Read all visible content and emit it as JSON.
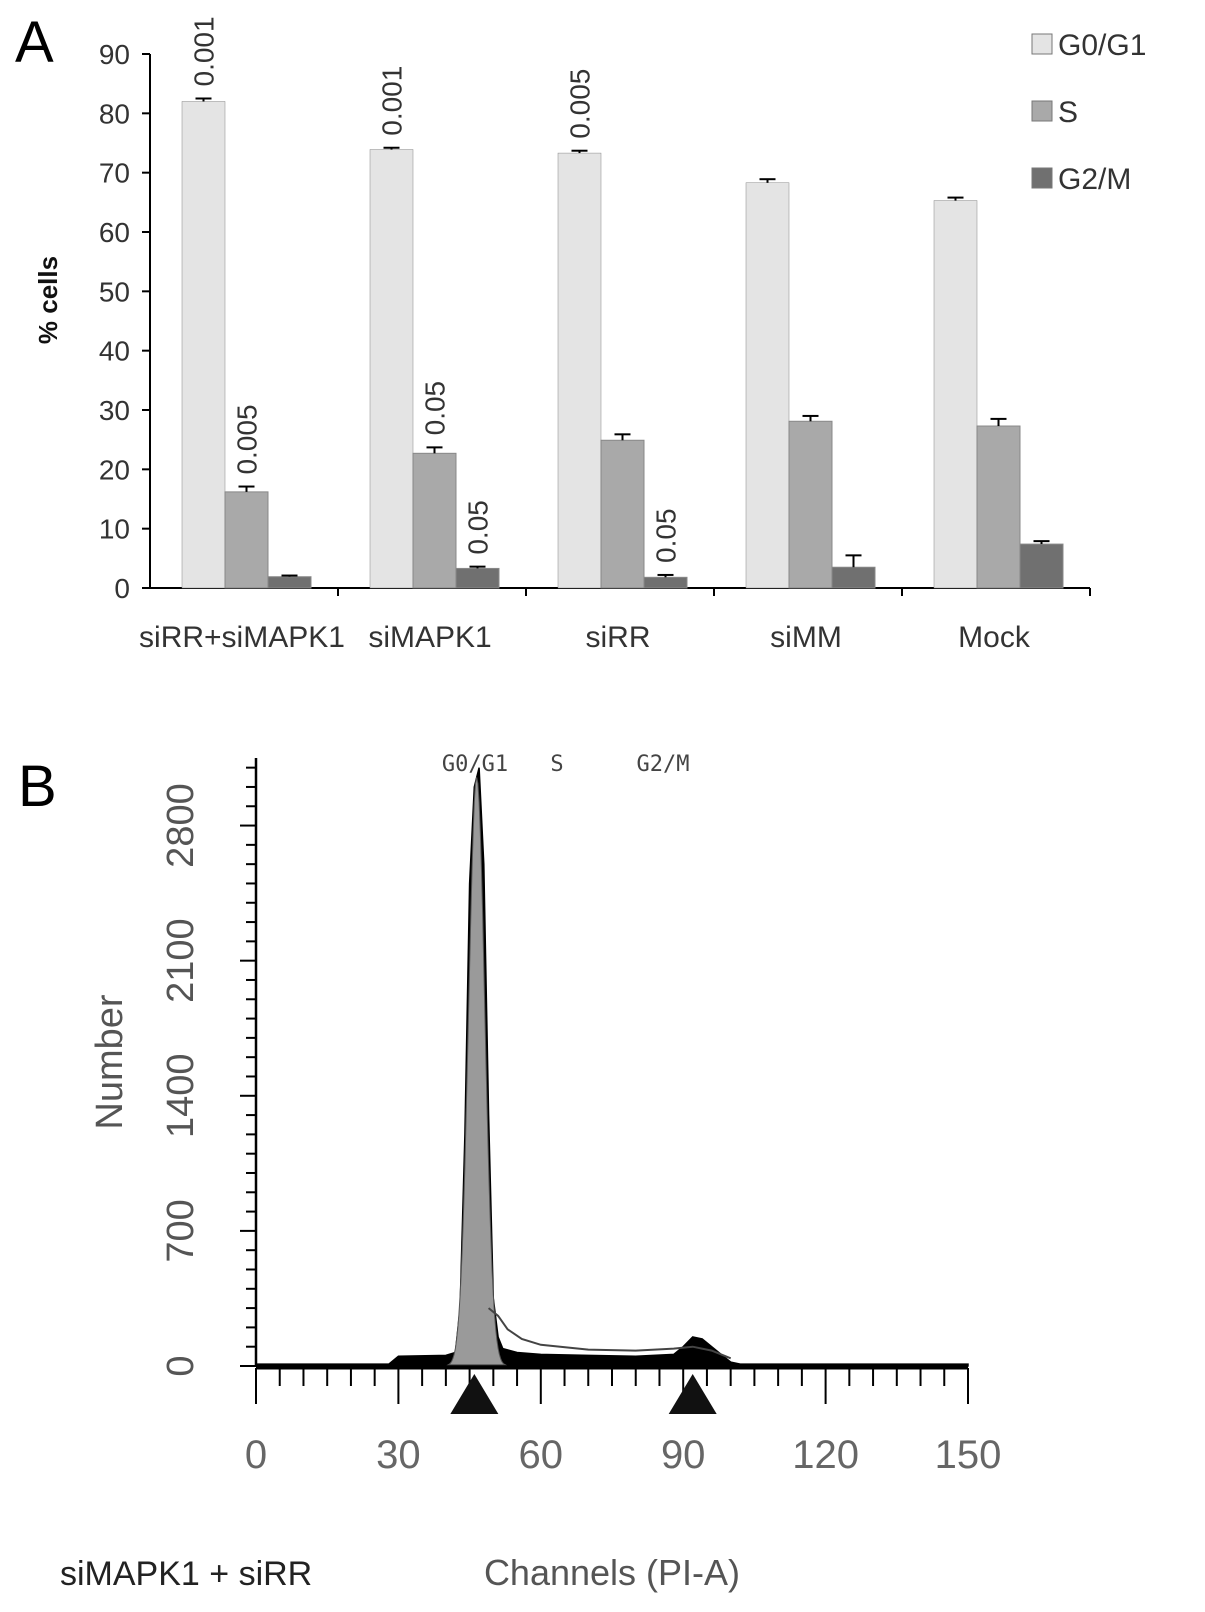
{
  "panel_a": {
    "label": "A",
    "ylabel": "% cells",
    "chart_data": {
      "type": "bar",
      "categories": [
        "siRR+siMAPK1",
        "siMAPK1",
        "siRR",
        "siMM",
        "Mock"
      ],
      "ylim": [
        0,
        90
      ],
      "yticks": [
        0,
        10,
        20,
        30,
        40,
        50,
        60,
        70,
        80,
        90
      ],
      "ylabel": "% cells",
      "xlabel": "",
      "legend_position": "top-right",
      "grid": false,
      "series": [
        {
          "name": "G0/G1",
          "color": "#e4e4e4",
          "values": [
            82.0,
            73.9,
            73.3,
            68.3,
            65.3
          ],
          "errors": [
            0.5,
            0.3,
            0.4,
            0.6,
            0.5
          ],
          "annotations": [
            "0.001",
            "0.001",
            "0.005",
            "",
            ""
          ]
        },
        {
          "name": "S",
          "color": "#a9a9a9",
          "values": [
            16.2,
            22.7,
            24.9,
            28.1,
            27.3
          ],
          "errors": [
            0.9,
            1.0,
            1.0,
            0.9,
            1.2
          ],
          "annotations": [
            "0.005",
            "0.05",
            "",
            "",
            ""
          ]
        },
        {
          "name": "G2/M",
          "color": "#707070",
          "values": [
            1.9,
            3.3,
            1.8,
            3.5,
            7.4
          ],
          "errors": [
            0.2,
            0.3,
            0.4,
            2.0,
            0.5
          ],
          "annotations": [
            "",
            "0.05",
            "0.05",
            "",
            ""
          ]
        }
      ]
    }
  },
  "panel_b": {
    "label": "B",
    "sample_label": "siMAPK1 + siRR",
    "chart_data": {
      "type": "area",
      "xlabel": "Channels (PI-A)",
      "ylabel": "Number",
      "xlim": [
        0,
        150
      ],
      "ylim": [
        0,
        3150
      ],
      "xticks": [
        0,
        30,
        60,
        90,
        120,
        150
      ],
      "yticks": [
        0,
        700,
        1400,
        2100,
        2800
      ],
      "ytick_labels": [
        "0",
        "700",
        "1400",
        "2100",
        "2800"
      ],
      "phase_labels": [
        "G0/G1",
        "S",
        "G2/M"
      ],
      "markers_at": [
        46,
        92
      ],
      "histogram": {
        "x": [
          0,
          28,
          30,
          40,
          42,
          43,
          44,
          45,
          46,
          47,
          48,
          49,
          50,
          51,
          52,
          55,
          60,
          70,
          80,
          88,
          90,
          92,
          94,
          96,
          98,
          100,
          102,
          150
        ],
        "y": [
          10,
          10,
          50,
          55,
          70,
          300,
          1200,
          2500,
          3000,
          3100,
          2600,
          1300,
          350,
          150,
          90,
          70,
          60,
          55,
          50,
          60,
          100,
          150,
          140,
          100,
          60,
          20,
          10,
          10
        ]
      },
      "peaks": [
        {
          "name": "G0/G1",
          "center": 46.5,
          "height": 3050
        },
        {
          "name": "G2/M",
          "center": 93,
          "height": 110
        }
      ]
    }
  }
}
